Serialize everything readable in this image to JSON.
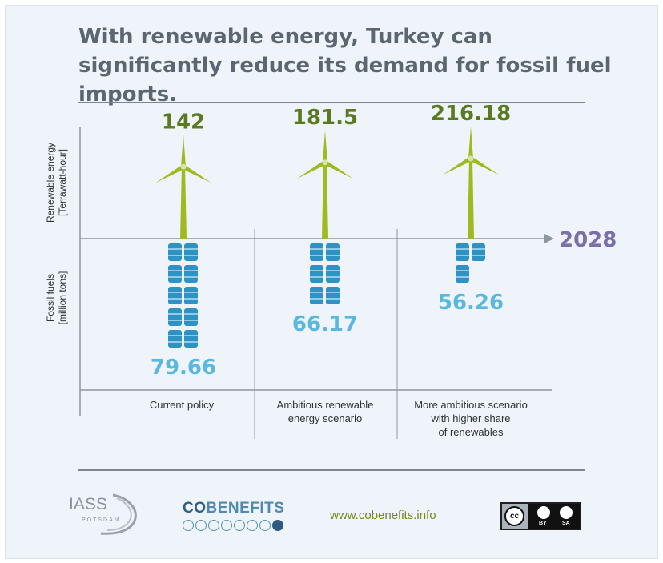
{
  "title": "With renewable energy, Turkey can significantly reduce its demand for fossil fuel imports.",
  "chart_data": {
    "type": "pictograph",
    "year_label": "2028",
    "upper_axis_label": [
      "Renewable energy",
      "[Terrawatt-hour]"
    ],
    "lower_axis_label": [
      "Fossil fuels",
      "[million tons]"
    ],
    "categories": [
      [
        "Current policy"
      ],
      [
        "Ambitious renewable",
        "energy scenario"
      ],
      [
        "More ambitious scenario",
        "with higher share",
        "of renewables"
      ]
    ],
    "series": [
      {
        "key": "renewable",
        "values": [
          142,
          181.5,
          216.18
        ],
        "labels": [
          "142",
          "181.5",
          "216.18"
        ]
      },
      {
        "key": "fossil",
        "values": [
          79.66,
          66.17,
          56.26
        ],
        "labels": [
          "79.66",
          "66.17",
          "56.26"
        ],
        "barrel_counts": [
          10,
          6,
          3
        ]
      }
    ],
    "colors": {
      "renewable": "#5b7a1f",
      "turbine": "#9fba1e",
      "fossil": "#5ab8e0",
      "barrel": "#2c93c4",
      "year": "#7c6fa8",
      "axis": "#8e979e"
    }
  },
  "footer": {
    "iass_name": "IASS",
    "iass_sub": "POTSDAM",
    "cobenefits": "COBENEFITS",
    "url": "www.cobenefits.info",
    "cc": "cc",
    "cc_by": "BY",
    "cc_sa": "SA",
    "cobenefit_icons": [
      "solar-icon",
      "wind-icon",
      "leaf-icon",
      "factory-icon",
      "gear-icon",
      "eye-icon",
      "truck-icon",
      "health-icon"
    ]
  }
}
